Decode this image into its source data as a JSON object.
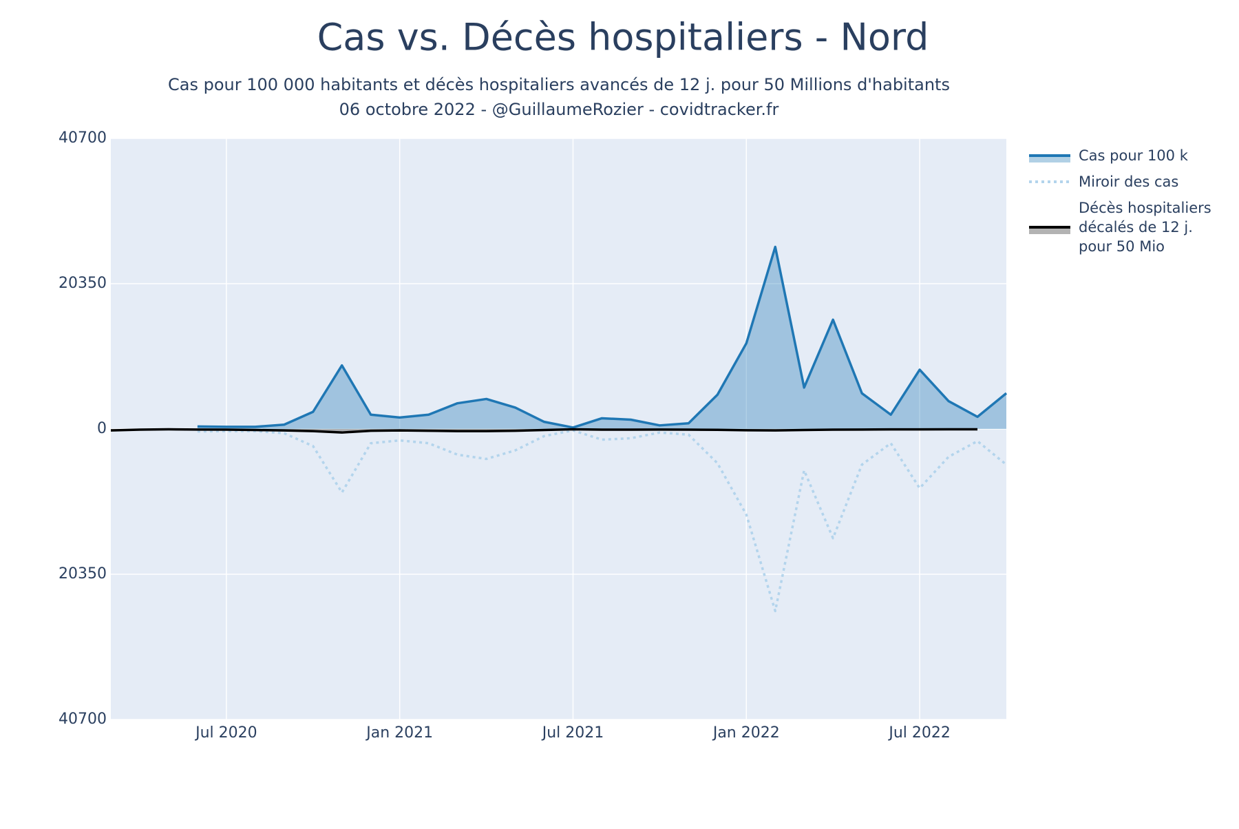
{
  "chart_data": {
    "type": "line",
    "title": "Cas vs. Décès hospitaliers - Nord",
    "subtitle": "Cas pour 100 000 habitants et décès hospitaliers avancés de 12 j. pour 50 Millions d'habitants",
    "caption": "06 octobre 2022 - @GuillaumeRozier - covidtracker.fr",
    "x": [
      "2020-03",
      "2020-04",
      "2020-05",
      "2020-06",
      "2020-07",
      "2020-08",
      "2020-09",
      "2020-10",
      "2020-11",
      "2020-12",
      "2021-01",
      "2021-02",
      "2021-03",
      "2021-04",
      "2021-05",
      "2021-06",
      "2021-07",
      "2021-08",
      "2021-09",
      "2021-10",
      "2021-11",
      "2021-12",
      "2022-01",
      "2022-02",
      "2022-03",
      "2022-04",
      "2022-05",
      "2022-06",
      "2022-07",
      "2022-08",
      "2022-09",
      "2022-10"
    ],
    "series": [
      {
        "name": "Cas pour 100 k",
        "color": "#1f77b4",
        "fill": "rgba(31,119,180,0.35)",
        "dash": false,
        "values": [
          null,
          null,
          null,
          350,
          300,
          300,
          600,
          2400,
          8900,
          2000,
          1600,
          2000,
          3600,
          4200,
          3000,
          1000,
          200,
          1500,
          1300,
          500,
          800,
          4800,
          12000,
          25500,
          5800,
          15300,
          5000,
          2000,
          8300,
          3900,
          1700,
          5000
        ]
      },
      {
        "name": "Miroir des cas",
        "color": "#b3d4ec",
        "fill": null,
        "dash": true,
        "values": [
          null,
          null,
          null,
          -350,
          -300,
          -300,
          -600,
          -2400,
          -8900,
          -2000,
          -1600,
          -2000,
          -3600,
          -4200,
          -3000,
          -1000,
          -200,
          -1500,
          -1300,
          -500,
          -800,
          -4800,
          -12000,
          -25500,
          -5800,
          -15300,
          -5000,
          -2000,
          -8300,
          -3900,
          -1700,
          -5000
        ]
      },
      {
        "name": "Décès hospitaliers décalés de 12 j. pour 50 Mio",
        "color": "#000000",
        "fill": "rgba(128,128,128,0.6)",
        "dash": false,
        "values": [
          -200,
          -100,
          -50,
          -80,
          -100,
          -150,
          -200,
          -300,
          -500,
          -250,
          -200,
          -250,
          -300,
          -300,
          -250,
          -150,
          -50,
          -100,
          -100,
          -80,
          -100,
          -120,
          -180,
          -200,
          -150,
          -100,
          -80,
          -60,
          -60,
          -50,
          -50,
          null
        ]
      }
    ],
    "xlim": [
      "2020-03",
      "2022-10"
    ],
    "xticks": [
      {
        "value": "2020-07",
        "label": "Jul 2020"
      },
      {
        "value": "2021-01",
        "label": "Jan 2021"
      },
      {
        "value": "2021-07",
        "label": "Jul 2021"
      },
      {
        "value": "2022-01",
        "label": "Jan 2022"
      },
      {
        "value": "2022-07",
        "label": "Jul 2022"
      }
    ],
    "ylim": [
      -40700,
      40700
    ],
    "yticks": [
      40700,
      20350,
      0,
      {
        "value": -20350,
        "label": "20350"
      },
      {
        "value": -40700,
        "label": "40700"
      }
    ],
    "grid": true
  }
}
